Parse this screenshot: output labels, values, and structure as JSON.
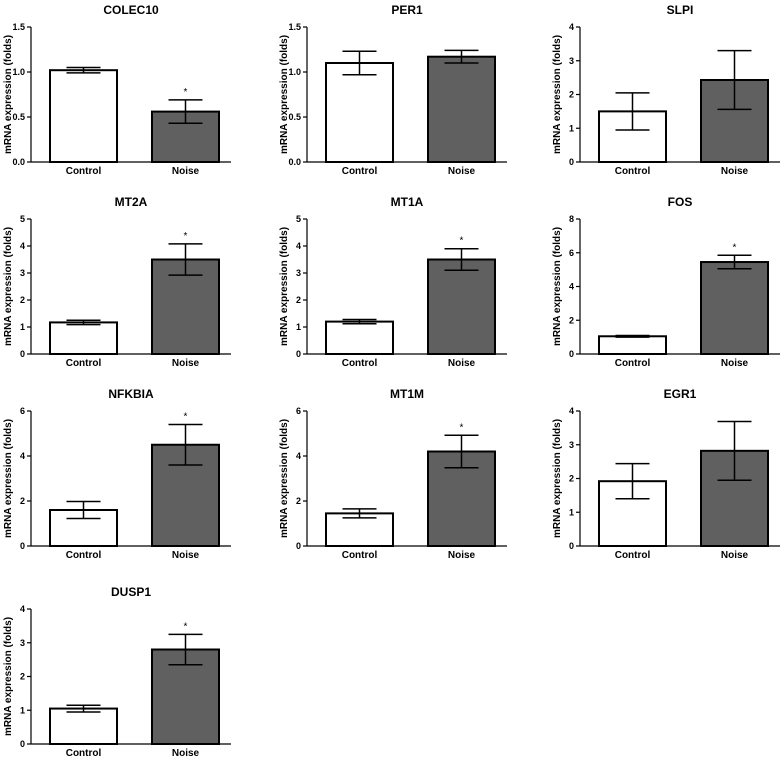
{
  "figure": {
    "ylabel": "mRNA expression (folds)",
    "colors": {
      "control": "#ffffff",
      "noise": "#606060",
      "stroke": "#000000"
    }
  },
  "chart_data": [
    {
      "type": "bar",
      "title": "COLEC10",
      "categories": [
        "Control",
        "Noise"
      ],
      "values": [
        1.02,
        0.56
      ],
      "errors": [
        0.03,
        0.13
      ],
      "significant": [
        false,
        true
      ],
      "sig_label": "*",
      "ylabel": "mRNA expression (folds)",
      "ylim": [
        0,
        1.5
      ],
      "yticks": [
        "0.0",
        "0.5",
        "1.0",
        "1.5"
      ]
    },
    {
      "type": "bar",
      "title": "PER1",
      "categories": [
        "Control",
        "Noise"
      ],
      "values": [
        1.1,
        1.17
      ],
      "errors": [
        0.13,
        0.07
      ],
      "significant": [
        false,
        false
      ],
      "sig_label": "*",
      "ylabel": "mRNA expression (folds)",
      "ylim": [
        0,
        1.5
      ],
      "yticks": [
        "0.0",
        "0.5",
        "1.0",
        "1.5"
      ]
    },
    {
      "type": "bar",
      "title": "SLPI",
      "categories": [
        "Control",
        "Noise"
      ],
      "values": [
        1.5,
        2.43
      ],
      "errors": [
        0.55,
        0.87
      ],
      "significant": [
        false,
        false
      ],
      "sig_label": "*",
      "ylabel": "mRNA expression (folds)",
      "ylim": [
        0,
        4
      ],
      "yticks": [
        "0",
        "1",
        "2",
        "3",
        "4"
      ]
    },
    {
      "type": "bar",
      "title": "MT2A",
      "categories": [
        "Control",
        "Noise"
      ],
      "values": [
        1.17,
        3.5
      ],
      "errors": [
        0.08,
        0.58
      ],
      "significant": [
        false,
        true
      ],
      "sig_label": "*",
      "ylabel": "mRNA expression (folds)",
      "ylim": [
        0,
        5
      ],
      "yticks": [
        "0",
        "1",
        "2",
        "3",
        "4",
        "5"
      ]
    },
    {
      "type": "bar",
      "title": "MT1A",
      "categories": [
        "Control",
        "Noise"
      ],
      "values": [
        1.2,
        3.5
      ],
      "errors": [
        0.08,
        0.4
      ],
      "significant": [
        false,
        true
      ],
      "sig_label": "*",
      "ylabel": "mRNA expression (folds)",
      "ylim": [
        0,
        5
      ],
      "yticks": [
        "0",
        "1",
        "2",
        "3",
        "4",
        "5"
      ]
    },
    {
      "type": "bar",
      "title": "FOS",
      "categories": [
        "Control",
        "Noise"
      ],
      "values": [
        1.05,
        5.45
      ],
      "errors": [
        0.05,
        0.4
      ],
      "significant": [
        false,
        true
      ],
      "sig_label": "*",
      "ylabel": "mRNA expression (folds)",
      "ylim": [
        0,
        8
      ],
      "yticks": [
        "0",
        "2",
        "4",
        "6",
        "8"
      ]
    },
    {
      "type": "bar",
      "title": "NFKBIA",
      "categories": [
        "Control",
        "Noise"
      ],
      "values": [
        1.6,
        4.5
      ],
      "errors": [
        0.38,
        0.9
      ],
      "significant": [
        false,
        true
      ],
      "sig_label": "*",
      "ylabel": "mRNA expression (folds)",
      "ylim": [
        0,
        6
      ],
      "yticks": [
        "0",
        "2",
        "4",
        "6"
      ]
    },
    {
      "type": "bar",
      "title": "MT1M",
      "categories": [
        "Control",
        "Noise"
      ],
      "values": [
        1.45,
        4.2
      ],
      "errors": [
        0.2,
        0.72
      ],
      "significant": [
        false,
        true
      ],
      "sig_label": "*",
      "ylabel": "mRNA expression (folds)",
      "ylim": [
        0,
        6
      ],
      "yticks": [
        "0",
        "2",
        "4",
        "6"
      ]
    },
    {
      "type": "bar",
      "title": "EGR1",
      "categories": [
        "Control",
        "Noise"
      ],
      "values": [
        1.92,
        2.82
      ],
      "errors": [
        0.52,
        0.87
      ],
      "significant": [
        false,
        false
      ],
      "sig_label": "*",
      "ylabel": "mRNA expression (folds)",
      "ylim": [
        0,
        4
      ],
      "yticks": [
        "0",
        "1",
        "2",
        "3",
        "4"
      ]
    },
    {
      "type": "bar",
      "title": "DUSP1",
      "categories": [
        "Control",
        "Noise"
      ],
      "values": [
        1.05,
        2.8
      ],
      "errors": [
        0.1,
        0.45
      ],
      "significant": [
        false,
        true
      ],
      "sig_label": "*",
      "ylabel": "mRNA expression (folds)",
      "ylim": [
        0,
        4
      ],
      "yticks": [
        "0",
        "1",
        "2",
        "3",
        "4"
      ]
    }
  ]
}
